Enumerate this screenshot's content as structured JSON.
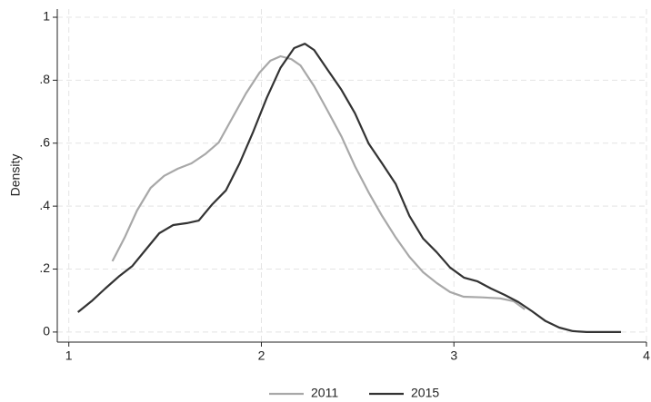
{
  "chart_data": {
    "type": "line",
    "ylabel": "Density",
    "xlim": [
      0.94,
      4.0
    ],
    "ylim": [
      -0.032,
      1.026
    ],
    "xticks": [
      1,
      2,
      3,
      4
    ],
    "yticks": [
      0,
      {
        "value": 0.2,
        "label": ".2"
      },
      {
        "value": 0.4,
        "label": ".4"
      },
      {
        "value": 0.6,
        "label": ".6"
      },
      {
        "value": 0.8,
        "label": ".8"
      },
      1
    ],
    "grid": true,
    "legend": "bottom",
    "series": [
      {
        "name": "2011",
        "color": "#a8a8a8",
        "x": [
          1.226,
          1.29,
          1.354,
          1.425,
          1.495,
          1.566,
          1.637,
          1.708,
          1.778,
          1.849,
          1.92,
          1.99,
          2.047,
          2.1,
          2.156,
          2.203,
          2.274,
          2.344,
          2.415,
          2.486,
          2.557,
          2.627,
          2.698,
          2.769,
          2.84,
          2.91,
          2.98,
          3.05,
          3.146,
          3.24,
          3.31,
          3.368
        ],
        "values": [
          0.225,
          0.3,
          0.386,
          0.458,
          0.496,
          0.519,
          0.536,
          0.565,
          0.602,
          0.68,
          0.758,
          0.824,
          0.862,
          0.876,
          0.867,
          0.847,
          0.781,
          0.703,
          0.622,
          0.527,
          0.444,
          0.369,
          0.3,
          0.239,
          0.19,
          0.156,
          0.127,
          0.112,
          0.11,
          0.107,
          0.098,
          0.072
        ]
      },
      {
        "name": "2015",
        "color": "#333333",
        "x": [
          1.047,
          1.118,
          1.189,
          1.259,
          1.33,
          1.4,
          1.47,
          1.542,
          1.613,
          1.675,
          1.745,
          1.816,
          1.887,
          1.958,
          2.028,
          2.099,
          2.17,
          2.226,
          2.274,
          2.344,
          2.415,
          2.486,
          2.557,
          2.627,
          2.698,
          2.769,
          2.84,
          2.91,
          2.98,
          3.052,
          3.123,
          3.193,
          3.264,
          3.335,
          3.406,
          3.476,
          3.547,
          3.618,
          3.689,
          3.868
        ],
        "values": [
          0.063,
          0.098,
          0.138,
          0.176,
          0.21,
          0.262,
          0.314,
          0.34,
          0.346,
          0.354,
          0.406,
          0.45,
          0.536,
          0.637,
          0.744,
          0.839,
          0.902,
          0.916,
          0.896,
          0.833,
          0.77,
          0.695,
          0.599,
          0.536,
          0.47,
          0.369,
          0.297,
          0.254,
          0.205,
          0.173,
          0.161,
          0.138,
          0.118,
          0.095,
          0.066,
          0.035,
          0.014,
          0.003,
          0,
          0
        ]
      }
    ]
  }
}
